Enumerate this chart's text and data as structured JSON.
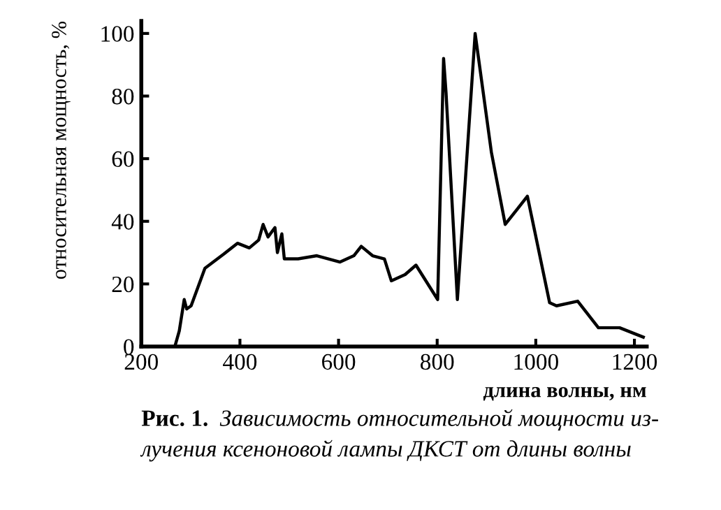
{
  "chart_data": {
    "type": "line",
    "xlabel": "длина волны, нм",
    "ylabel": "относительная мощность, %",
    "annotations": [
      "Рис. 1.",
      "Зависимость относительной мощности из-\nлучения ксеноновой лампы ДКСТ от длины волны"
    ],
    "x": [
      268,
      277,
      287,
      292,
      301,
      329,
      367,
      395,
      419,
      438,
      447,
      457,
      471,
      476,
      485,
      490,
      518,
      556,
      603,
      631,
      646,
      669,
      693,
      707,
      735,
      757,
      801,
      813,
      818,
      841,
      877,
      910,
      938,
      963,
      983,
      1028,
      1042,
      1085,
      1127,
      1170,
      1218
    ],
    "series": [
      {
        "color": "#000000",
        "values": [
          0,
          5,
          15,
          12,
          13,
          25,
          29.5,
          33,
          31.5,
          34,
          39,
          35,
          38,
          30,
          36,
          28,
          28,
          29,
          27,
          29,
          32,
          29,
          28,
          21,
          23,
          26,
          15,
          92,
          81,
          15,
          100,
          62,
          39,
          44,
          48,
          14,
          13,
          14.5,
          6,
          6,
          3
        ]
      }
    ],
    "xlim": [
      200,
      1225
    ],
    "ylim": [
      0,
      104
    ],
    "xticks": [
      200,
      400,
      600,
      800,
      1000,
      1200
    ],
    "yticks": [
      0,
      20,
      40,
      60,
      80,
      100
    ],
    "grid": false,
    "legend": false,
    "marker": "none",
    "line_style": "solid"
  }
}
